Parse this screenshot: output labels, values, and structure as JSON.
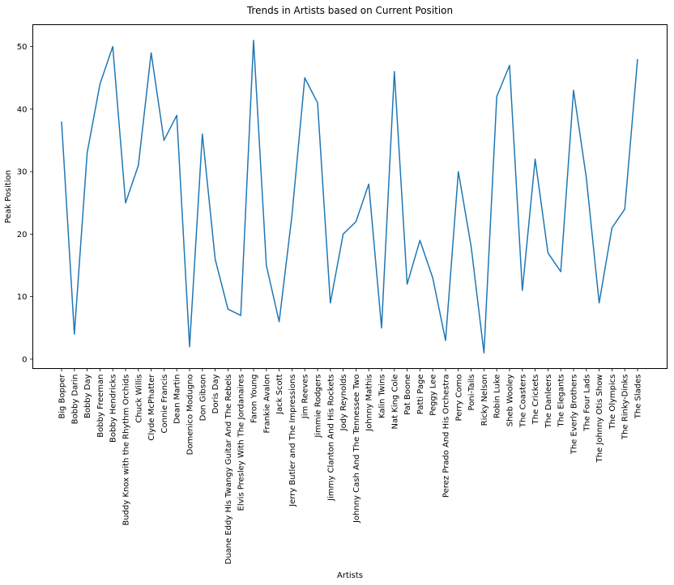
{
  "chart_data": {
    "type": "line",
    "title": "Trends in Artists based on Current Position",
    "xlabel": "Artists",
    "ylabel": "Peak Position",
    "ylim": [
      -1.5,
      53.5
    ],
    "yticks": [
      0,
      10,
      20,
      30,
      40,
      50
    ],
    "grid": false,
    "legend": "none",
    "line_color": "#1f77b4",
    "categories": [
      "Big Bopper",
      "Bobby Darin",
      "Bobby Day",
      "Bobby Freeman",
      "Bobby Hendricks",
      "Buddy Knox with the Rhythm Orchids",
      "Chuck Willis",
      "Clyde McPhatter",
      "Connie Francis",
      "Dean Martin",
      "Domenico Modugno",
      "Don Gibson",
      "Doris Day",
      "Duane Eddy His Twangy Guitar And The Rebels",
      "Elvis Presley With The Jordanaires",
      "Faron Young",
      "Frankie Avalon",
      "Jack Scott",
      "Jerry Butler and The Impressions",
      "Jim Reeves",
      "Jimmie Rodgers",
      "Jimmy Clanton And His Rockets",
      "Jody Reynolds",
      "Johnny Cash And The Tennessee Two",
      "Johnny Mathis",
      "Kalin Twins",
      "Nat King Cole",
      "Pat Boone",
      "Patti Page",
      "Peggy Lee",
      "Perez Prado And His Orchestra",
      "Perry Como",
      "Poni-Tails",
      "Ricky Nelson",
      "Robin Luke",
      "Sheb Wooley",
      "The Coasters",
      "The Crickets",
      "The Danleers",
      "The Elegants",
      "The Everly Brothers",
      "The Four Lads",
      "The Johnny Otis Show",
      "The Olympics",
      "The Rinky-Dinks",
      "The Slades"
    ],
    "series": [
      {
        "values": [
          38,
          4,
          33,
          44,
          50,
          25,
          31,
          49,
          35,
          39,
          2,
          36,
          16,
          8,
          7,
          51,
          15,
          6,
          23,
          45,
          41,
          9,
          20,
          22,
          28,
          5,
          46,
          12,
          19,
          13,
          3,
          30,
          18,
          1,
          42,
          47,
          11,
          32,
          17,
          14,
          43,
          29,
          9,
          21,
          24,
          48
        ]
      }
    ]
  }
}
